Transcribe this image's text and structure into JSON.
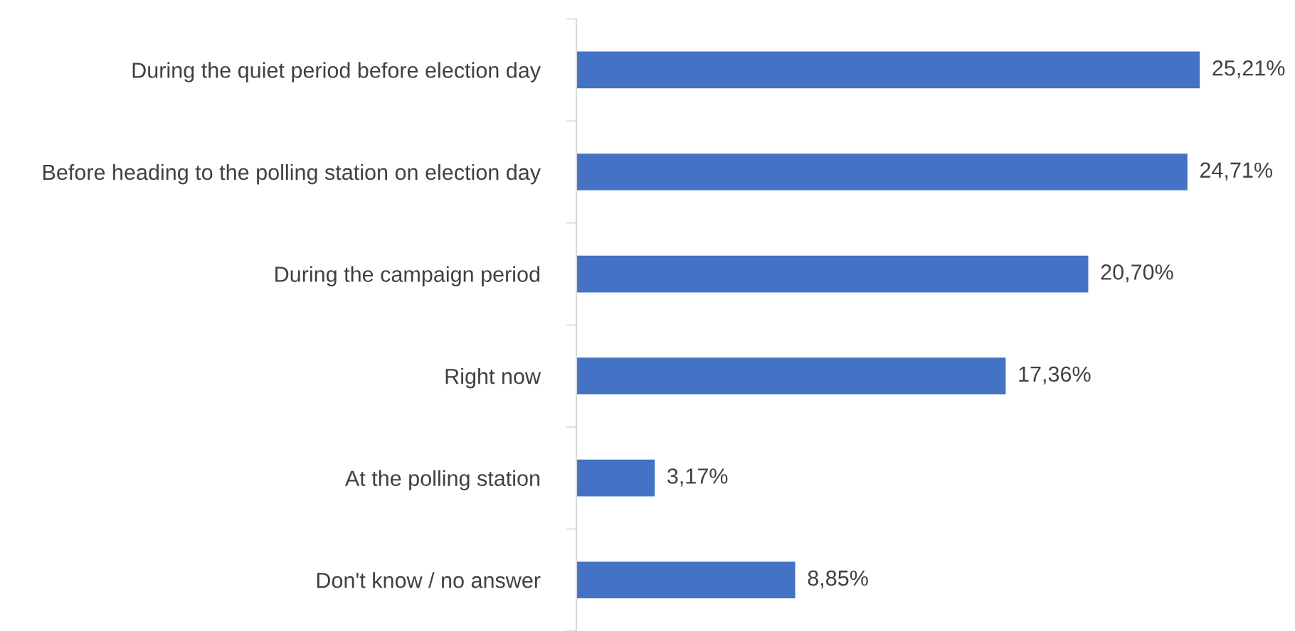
{
  "chart_data": {
    "type": "bar",
    "orientation": "horizontal",
    "categories": [
      "During the quiet period before election day",
      "Before heading to the polling station on election day",
      "During the campaign period",
      "Right now",
      "At the polling station",
      "Don't know / no answer"
    ],
    "values": [
      25.21,
      24.71,
      20.7,
      17.36,
      3.17,
      8.85
    ],
    "color": "#4472c4",
    "value_labels": [
      "25,21%",
      "24,71%",
      "20,70%",
      "17,36%",
      "3,17%",
      "8,85%"
    ],
    "grid": false,
    "legend": false
  }
}
